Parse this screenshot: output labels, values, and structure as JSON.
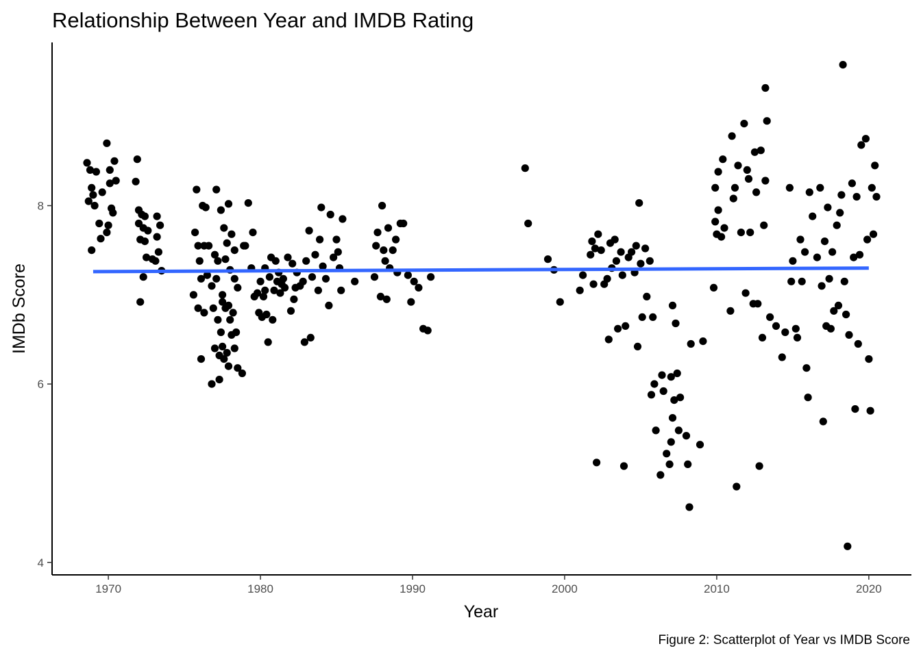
{
  "chart_data": {
    "type": "scatter",
    "title": "Relationship Between Year and IMDB Rating",
    "xlabel": "Year",
    "ylabel": "IMDb Score",
    "caption": "Figure 2: Scatterplot of Year vs IMDB Score",
    "xlim": [
      1966.3,
      2022.8
    ],
    "ylim": [
      3.86,
      9.83
    ],
    "x_ticks": [
      1970,
      1980,
      1990,
      2000,
      2010,
      2020
    ],
    "y_ticks": [
      4,
      6,
      8
    ],
    "grid": false,
    "legend": "none",
    "point_color": "#000000",
    "trend_color": "#3366FF",
    "trend_line": {
      "x": [
        1969,
        2020
      ],
      "y": [
        7.26,
        7.3
      ]
    },
    "points": [
      [
        1968.6,
        8.48
      ],
      [
        1968.7,
        8.05
      ],
      [
        1968.9,
        7.5
      ],
      [
        1969.0,
        8.12
      ],
      [
        1968.8,
        8.4
      ],
      [
        1969.2,
        8.38
      ],
      [
        1968.9,
        8.2
      ],
      [
        1969.1,
        8.0
      ],
      [
        1969.4,
        7.8
      ],
      [
        1969.5,
        7.63
      ],
      [
        1969.6,
        8.15
      ],
      [
        1969.9,
        7.7
      ],
      [
        1970.0,
        7.78
      ],
      [
        1969.9,
        8.7
      ],
      [
        1970.1,
        8.4
      ],
      [
        1970.2,
        7.97
      ],
      [
        1970.3,
        7.92
      ],
      [
        1970.4,
        8.5
      ],
      [
        1970.5,
        8.28
      ],
      [
        1970.1,
        8.25
      ],
      [
        1971.8,
        8.27
      ],
      [
        1971.9,
        8.52
      ],
      [
        1972.0,
        7.95
      ],
      [
        1972.0,
        7.8
      ],
      [
        1972.1,
        7.62
      ],
      [
        1972.1,
        6.92
      ],
      [
        1972.2,
        7.9
      ],
      [
        1972.3,
        7.75
      ],
      [
        1972.3,
        7.2
      ],
      [
        1972.4,
        7.88
      ],
      [
        1972.4,
        7.6
      ],
      [
        1972.5,
        7.42
      ],
      [
        1972.6,
        7.72
      ],
      [
        1972.9,
        7.4
      ],
      [
        1973.1,
        7.38
      ],
      [
        1973.2,
        7.65
      ],
      [
        1973.2,
        7.88
      ],
      [
        1973.3,
        7.48
      ],
      [
        1973.4,
        7.78
      ],
      [
        1973.5,
        7.27
      ],
      [
        1975.6,
        7.0
      ],
      [
        1975.7,
        7.7
      ],
      [
        1975.8,
        8.18
      ],
      [
        1975.9,
        6.85
      ],
      [
        1975.9,
        7.55
      ],
      [
        1976.0,
        7.38
      ],
      [
        1976.1,
        7.18
      ],
      [
        1976.1,
        6.28
      ],
      [
        1976.2,
        8.0
      ],
      [
        1976.3,
        7.55
      ],
      [
        1976.3,
        6.8
      ],
      [
        1976.4,
        7.98
      ],
      [
        1976.5,
        7.22
      ],
      [
        1976.6,
        7.55
      ],
      [
        1976.8,
        6.0
      ],
      [
        1976.8,
        7.1
      ],
      [
        1976.9,
        6.85
      ],
      [
        1977.0,
        7.45
      ],
      [
        1977.0,
        6.4
      ],
      [
        1977.1,
        8.18
      ],
      [
        1977.1,
        7.18
      ],
      [
        1977.2,
        6.72
      ],
      [
        1977.2,
        7.38
      ],
      [
        1977.3,
        6.05
      ],
      [
        1977.3,
        6.32
      ],
      [
        1977.4,
        7.95
      ],
      [
        1977.4,
        6.58
      ],
      [
        1977.5,
        6.92
      ],
      [
        1977.5,
        7.0
      ],
      [
        1977.5,
        6.42
      ],
      [
        1977.6,
        7.75
      ],
      [
        1977.6,
        6.28
      ],
      [
        1977.7,
        6.85
      ],
      [
        1977.7,
        7.4
      ],
      [
        1977.8,
        6.35
      ],
      [
        1977.8,
        7.58
      ],
      [
        1977.9,
        6.2
      ],
      [
        1977.9,
        8.02
      ],
      [
        1977.9,
        6.88
      ],
      [
        1978.0,
        7.28
      ],
      [
        1978.0,
        6.72
      ],
      [
        1978.1,
        6.55
      ],
      [
        1978.1,
        7.68
      ],
      [
        1978.2,
        6.8
      ],
      [
        1978.3,
        7.18
      ],
      [
        1978.3,
        6.4
      ],
      [
        1978.3,
        7.5
      ],
      [
        1978.4,
        6.58
      ],
      [
        1978.5,
        6.18
      ],
      [
        1978.5,
        7.08
      ],
      [
        1978.8,
        6.12
      ],
      [
        1978.9,
        7.55
      ],
      [
        1979.0,
        7.55
      ],
      [
        1979.2,
        8.03
      ],
      [
        1979.4,
        7.3
      ],
      [
        1979.5,
        7.7
      ],
      [
        1979.6,
        6.98
      ],
      [
        1979.8,
        7.02
      ],
      [
        1979.9,
        6.8
      ],
      [
        1980.0,
        7.15
      ],
      [
        1980.1,
        6.75
      ],
      [
        1980.2,
        6.98
      ],
      [
        1980.3,
        7.3
      ],
      [
        1980.3,
        7.05
      ],
      [
        1980.4,
        6.78
      ],
      [
        1980.5,
        6.47
      ],
      [
        1980.6,
        7.2
      ],
      [
        1980.7,
        7.42
      ],
      [
        1980.8,
        6.72
      ],
      [
        1980.9,
        7.05
      ],
      [
        1981.0,
        7.38
      ],
      [
        1981.1,
        7.15
      ],
      [
        1981.2,
        7.25
      ],
      [
        1981.3,
        7.02
      ],
      [
        1981.4,
        7.12
      ],
      [
        1981.5,
        7.18
      ],
      [
        1981.6,
        7.08
      ],
      [
        1981.8,
        7.42
      ],
      [
        1982.0,
        6.82
      ],
      [
        1982.1,
        7.35
      ],
      [
        1982.2,
        6.95
      ],
      [
        1982.3,
        7.08
      ],
      [
        1982.4,
        7.25
      ],
      [
        1982.6,
        7.1
      ],
      [
        1982.8,
        7.15
      ],
      [
        1982.9,
        6.47
      ],
      [
        1983.0,
        7.38
      ],
      [
        1983.2,
        7.72
      ],
      [
        1983.3,
        6.52
      ],
      [
        1983.4,
        7.2
      ],
      [
        1983.6,
        7.45
      ],
      [
        1983.8,
        7.05
      ],
      [
        1983.9,
        7.62
      ],
      [
        1984.0,
        7.98
      ],
      [
        1984.1,
        7.32
      ],
      [
        1984.3,
        7.18
      ],
      [
        1984.5,
        6.88
      ],
      [
        1984.6,
        7.9
      ],
      [
        1984.8,
        7.42
      ],
      [
        1985.0,
        7.62
      ],
      [
        1985.1,
        7.48
      ],
      [
        1985.2,
        7.3
      ],
      [
        1985.3,
        7.05
      ],
      [
        1985.4,
        7.85
      ],
      [
        1986.2,
        7.15
      ],
      [
        1987.5,
        7.2
      ],
      [
        1987.6,
        7.55
      ],
      [
        1987.7,
        7.7
      ],
      [
        1987.9,
        6.98
      ],
      [
        1988.0,
        8.0
      ],
      [
        1988.1,
        7.5
      ],
      [
        1988.2,
        7.38
      ],
      [
        1988.3,
        6.95
      ],
      [
        1988.4,
        7.75
      ],
      [
        1988.5,
        7.3
      ],
      [
        1988.7,
        7.5
      ],
      [
        1988.9,
        7.62
      ],
      [
        1989.0,
        7.25
      ],
      [
        1989.2,
        7.8
      ],
      [
        1989.4,
        7.8
      ],
      [
        1989.7,
        7.22
      ],
      [
        1989.9,
        6.92
      ],
      [
        1990.1,
        7.15
      ],
      [
        1990.4,
        7.08
      ],
      [
        1990.7,
        6.62
      ],
      [
        1991.0,
        6.6
      ],
      [
        1991.2,
        7.2
      ],
      [
        1997.4,
        8.42
      ],
      [
        1997.6,
        7.8
      ],
      [
        1998.9,
        7.4
      ],
      [
        1999.3,
        7.28
      ],
      [
        1999.7,
        6.92
      ],
      [
        2001.0,
        7.05
      ],
      [
        2001.2,
        7.22
      ],
      [
        2001.7,
        7.45
      ],
      [
        2001.8,
        7.6
      ],
      [
        2001.9,
        7.12
      ],
      [
        2002.0,
        7.52
      ],
      [
        2002.1,
        5.12
      ],
      [
        2002.2,
        7.68
      ],
      [
        2002.4,
        7.5
      ],
      [
        2002.6,
        7.12
      ],
      [
        2002.8,
        7.18
      ],
      [
        2002.9,
        6.5
      ],
      [
        2003.0,
        7.58
      ],
      [
        2003.1,
        7.3
      ],
      [
        2003.3,
        7.62
      ],
      [
        2003.4,
        7.38
      ],
      [
        2003.5,
        6.62
      ],
      [
        2003.7,
        7.48
      ],
      [
        2003.8,
        7.22
      ],
      [
        2003.9,
        5.08
      ],
      [
        2004.0,
        6.65
      ],
      [
        2004.2,
        7.42
      ],
      [
        2004.4,
        7.48
      ],
      [
        2004.6,
        7.25
      ],
      [
        2004.7,
        7.55
      ],
      [
        2004.8,
        6.42
      ],
      [
        2004.9,
        8.03
      ],
      [
        2005.0,
        7.35
      ],
      [
        2005.1,
        6.75
      ],
      [
        2005.3,
        7.52
      ],
      [
        2005.4,
        6.98
      ],
      [
        2005.6,
        7.38
      ],
      [
        2005.7,
        5.88
      ],
      [
        2005.8,
        6.75
      ],
      [
        2005.9,
        6.0
      ],
      [
        2006.0,
        5.48
      ],
      [
        2006.3,
        4.98
      ],
      [
        2006.4,
        6.1
      ],
      [
        2006.5,
        5.92
      ],
      [
        2006.7,
        5.22
      ],
      [
        2006.9,
        5.1
      ],
      [
        2007.0,
        5.35
      ],
      [
        2007.0,
        6.08
      ],
      [
        2007.1,
        6.88
      ],
      [
        2007.1,
        5.62
      ],
      [
        2007.2,
        5.82
      ],
      [
        2007.3,
        6.68
      ],
      [
        2007.4,
        6.12
      ],
      [
        2007.5,
        5.48
      ],
      [
        2007.6,
        5.85
      ],
      [
        2008.0,
        5.42
      ],
      [
        2008.1,
        5.1
      ],
      [
        2008.2,
        4.62
      ],
      [
        2008.3,
        6.45
      ],
      [
        2008.9,
        5.32
      ],
      [
        2009.1,
        6.48
      ],
      [
        2009.8,
        7.08
      ],
      [
        2009.9,
        7.82
      ],
      [
        2009.9,
        8.2
      ],
      [
        2010.0,
        7.68
      ],
      [
        2010.1,
        7.95
      ],
      [
        2010.1,
        8.38
      ],
      [
        2010.3,
        7.65
      ],
      [
        2010.4,
        8.52
      ],
      [
        2010.5,
        7.75
      ],
      [
        2010.9,
        6.82
      ],
      [
        2011.0,
        8.78
      ],
      [
        2011.1,
        8.08
      ],
      [
        2011.2,
        8.2
      ],
      [
        2011.3,
        4.85
      ],
      [
        2011.4,
        8.45
      ],
      [
        2011.6,
        7.7
      ],
      [
        2011.8,
        8.92
      ],
      [
        2011.9,
        7.02
      ],
      [
        2012.0,
        8.4
      ],
      [
        2012.1,
        8.3
      ],
      [
        2012.2,
        7.7
      ],
      [
        2012.4,
        6.9
      ],
      [
        2012.5,
        8.6
      ],
      [
        2012.6,
        8.15
      ],
      [
        2012.7,
        6.9
      ],
      [
        2012.8,
        5.08
      ],
      [
        2012.9,
        8.62
      ],
      [
        2013.0,
        6.52
      ],
      [
        2013.1,
        7.78
      ],
      [
        2013.2,
        9.32
      ],
      [
        2013.2,
        8.28
      ],
      [
        2013.3,
        8.95
      ],
      [
        2013.5,
        6.75
      ],
      [
        2013.9,
        6.65
      ],
      [
        2014.3,
        6.3
      ],
      [
        2014.5,
        6.58
      ],
      [
        2014.8,
        8.2
      ],
      [
        2014.9,
        7.15
      ],
      [
        2015.0,
        7.38
      ],
      [
        2015.2,
        6.62
      ],
      [
        2015.3,
        6.52
      ],
      [
        2015.5,
        7.62
      ],
      [
        2015.6,
        7.15
      ],
      [
        2015.8,
        7.48
      ],
      [
        2015.9,
        6.18
      ],
      [
        2016.0,
        5.85
      ],
      [
        2016.1,
        8.15
      ],
      [
        2016.3,
        7.88
      ],
      [
        2016.6,
        7.42
      ],
      [
        2016.8,
        8.2
      ],
      [
        2016.9,
        7.1
      ],
      [
        2017.0,
        5.58
      ],
      [
        2017.1,
        7.6
      ],
      [
        2017.2,
        6.65
      ],
      [
        2017.3,
        7.98
      ],
      [
        2017.4,
        7.18
      ],
      [
        2017.5,
        6.62
      ],
      [
        2017.6,
        7.48
      ],
      [
        2017.7,
        6.82
      ],
      [
        2017.9,
        7.78
      ],
      [
        2018.0,
        6.88
      ],
      [
        2018.1,
        7.92
      ],
      [
        2018.2,
        8.12
      ],
      [
        2018.3,
        9.58
      ],
      [
        2018.4,
        7.15
      ],
      [
        2018.5,
        6.78
      ],
      [
        2018.6,
        4.18
      ],
      [
        2018.7,
        6.55
      ],
      [
        2018.9,
        8.25
      ],
      [
        2019.0,
        7.42
      ],
      [
        2019.1,
        5.72
      ],
      [
        2019.2,
        8.1
      ],
      [
        2019.3,
        6.45
      ],
      [
        2019.4,
        7.45
      ],
      [
        2019.5,
        8.68
      ],
      [
        2019.8,
        8.75
      ],
      [
        2019.9,
        7.62
      ],
      [
        2020.0,
        6.28
      ],
      [
        2020.1,
        5.7
      ],
      [
        2020.2,
        8.2
      ],
      [
        2020.3,
        7.68
      ],
      [
        2020.4,
        8.45
      ],
      [
        2020.5,
        8.1
      ]
    ]
  }
}
